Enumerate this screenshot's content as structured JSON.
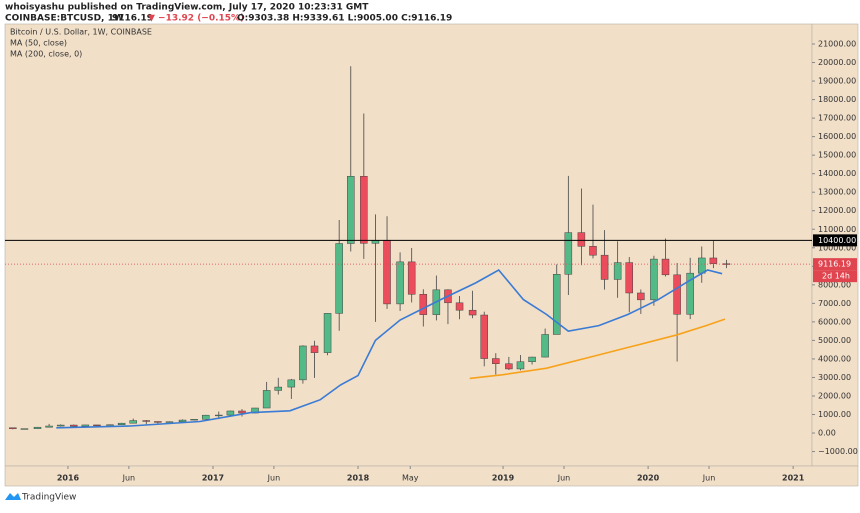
{
  "header": {
    "published": "whoisyashu published on TradingView.com, July 17, 2020 10:23:31 GMT",
    "symbol": "COINBASE:BTCUSD, 1W",
    "last": "9116.19",
    "change": "▼ −13.92 (−0.15%)",
    "ohlc": "O:9303.38 H:9339.61 L:9005.00 C:9116.19"
  },
  "chart_data": {
    "type": "candlestick",
    "title": "Bitcoin / U.S. Dollar, 1W, COINBASE",
    "up_color": "#53b987",
    "down_color": "#eb4d5c",
    "x": [
      2015.62,
      2015.7,
      2015.79,
      2015.87,
      2015.95,
      2016.04,
      2016.12,
      2016.2,
      2016.29,
      2016.37,
      2016.45,
      2016.54,
      2016.62,
      2016.7,
      2016.79,
      2016.87,
      2016.95,
      2017.04,
      2017.12,
      2017.2,
      2017.29,
      2017.37,
      2017.45,
      2017.54,
      2017.62,
      2017.7,
      2017.79,
      2017.87,
      2017.95,
      2018.04,
      2018.12,
      2018.2,
      2018.29,
      2018.37,
      2018.45,
      2018.54,
      2018.62,
      2018.7,
      2018.79,
      2018.87,
      2018.95,
      2019.04,
      2019.12,
      2019.2,
      2019.29,
      2019.37,
      2019.45,
      2019.54,
      2019.62,
      2019.7,
      2019.79,
      2019.87,
      2019.95,
      2020.04,
      2020.12,
      2020.2,
      2020.29,
      2020.37,
      2020.45,
      2020.54
    ],
    "open": [
      284,
      230,
      236,
      314,
      378,
      430,
      368,
      437,
      416,
      448,
      531,
      673,
      624,
      575,
      609,
      700,
      742,
      963,
      970,
      1190,
      1080,
      1350,
      2300,
      2480,
      2870,
      4700,
      4340,
      6460,
      10230,
      13860,
      10240,
      10400,
      6970,
      9240,
      7490,
      6390,
      7730,
      7030,
      6630,
      6370,
      4020,
      3740,
      3460,
      3850,
      4100,
      5320,
      8570,
      10820,
      10080,
      9600,
      8290,
      9200,
      7560,
      7190,
      9390,
      8540,
      6410,
      8630,
      9450,
      9140
    ],
    "high": [
      285,
      244,
      334,
      495,
      465,
      462,
      445,
      440,
      468,
      548,
      778,
      703,
      626,
      628,
      740,
      754,
      979,
      1160,
      1210,
      1290,
      1360,
      2760,
      2980,
      2920,
      4740,
      4980,
      6470,
      11500,
      19800,
      17250,
      11800,
      11700,
      9750,
      9990,
      7760,
      8500,
      7760,
      7400,
      7680,
      6550,
      4310,
      4110,
      4210,
      4120,
      5640,
      9100,
      13880,
      13200,
      12330,
      10950,
      10350,
      9500,
      7750,
      9570,
      10500,
      9180,
      9460,
      10070,
      10380,
      9350
    ],
    "low": [
      199,
      225,
      236,
      300,
      350,
      350,
      366,
      394,
      412,
      436,
      521,
      475,
      480,
      570,
      607,
      677,
      739,
      750,
      930,
      890,
      1060,
      1350,
      2080,
      1840,
      2670,
      2980,
      4200,
      5520,
      9800,
      9400,
      6000,
      6700,
      6590,
      7050,
      5750,
      6080,
      5880,
      6140,
      6200,
      3600,
      3160,
      3400,
      3380,
      3700,
      4080,
      5330,
      7450,
      9060,
      9430,
      7740,
      7300,
      6520,
      6430,
      6870,
      8450,
      3860,
      6150,
      8110,
      8900,
      8900
    ],
    "close": [
      230,
      236,
      314,
      378,
      430,
      368,
      437,
      416,
      448,
      531,
      673,
      624,
      575,
      609,
      700,
      742,
      963,
      970,
      1190,
      1080,
      1350,
      2300,
      2480,
      2870,
      4700,
      4340,
      6460,
      10230,
      13860,
      10240,
      10400,
      6970,
      9240,
      7490,
      6390,
      7730,
      7030,
      6630,
      6370,
      4020,
      3740,
      3460,
      3850,
      4100,
      5320,
      8570,
      10820,
      10080,
      9600,
      8290,
      9200,
      7560,
      7190,
      9390,
      8540,
      6410,
      8630,
      9450,
      9140,
      9116.19
    ],
    "series": [
      {
        "name": "MA (50, close)",
        "color": "#3a7bd5",
        "x": [
          2015.92,
          2016.43,
          2016.91,
          2017.26,
          2017.53,
          2017.74,
          2017.88,
          2018.0,
          2018.12,
          2018.29,
          2018.57,
          2018.81,
          2018.97,
          2019.14,
          2019.3,
          2019.45,
          2019.66,
          2019.86,
          2020.07,
          2020.28,
          2020.41,
          2020.51
        ],
        "values": [
          280,
          380,
          620,
          1100,
          1200,
          1800,
          2600,
          3100,
          5000,
          6100,
          7200,
          8100,
          8800,
          7200,
          6400,
          5500,
          5800,
          6400,
          7200,
          8200,
          8800,
          8600
        ]
      },
      {
        "name": "MA (200, close, 0)",
        "color": "#f7a21b",
        "x": [
          2018.77,
          2019.0,
          2019.3,
          2019.6,
          2019.9,
          2020.2,
          2020.4,
          2020.53
        ],
        "values": [
          2950,
          3150,
          3500,
          4100,
          4700,
          5300,
          5800,
          6150
        ]
      }
    ],
    "hline": {
      "value": 10400,
      "label": "10400.00"
    },
    "last_price": {
      "value": 9116.19,
      "label": "9116.19",
      "countdown": "2d 14h"
    },
    "xlim": [
      2015.566,
      2021.13
    ],
    "ylim": [
      -1780,
      22080
    ],
    "xticks": [
      {
        "value": 2016,
        "label": "2016"
      },
      {
        "value": 2016.42,
        "label": "Jun"
      },
      {
        "value": 2017,
        "label": "2017"
      },
      {
        "value": 2017.42,
        "label": "Jun"
      },
      {
        "value": 2018,
        "label": "2018"
      },
      {
        "value": 2018.36,
        "label": "May"
      },
      {
        "value": 2019,
        "label": "2019"
      },
      {
        "value": 2019.42,
        "label": "Jun"
      },
      {
        "value": 2020,
        "label": "2020"
      },
      {
        "value": 2020.42,
        "label": "Jun"
      },
      {
        "value": 2021,
        "label": "2021"
      }
    ],
    "yticks": [
      {
        "value": -1000,
        "label": "−1000.00"
      },
      {
        "value": 0,
        "label": "0.00"
      },
      {
        "value": 1000,
        "label": "1000.00"
      },
      {
        "value": 2000,
        "label": "2000.00"
      },
      {
        "value": 3000,
        "label": "3000.00"
      },
      {
        "value": 4000,
        "label": "4000.00"
      },
      {
        "value": 5000,
        "label": "5000.00"
      },
      {
        "value": 6000,
        "label": "6000.00"
      },
      {
        "value": 7000,
        "label": "7000.00"
      },
      {
        "value": 8000,
        "label": "8000.00"
      },
      {
        "value": 9000,
        "label": "9000.00"
      },
      {
        "value": 10000,
        "label": "10000.00"
      },
      {
        "value": 11000,
        "label": "11000.00"
      },
      {
        "value": 12000,
        "label": "12000.00"
      },
      {
        "value": 13000,
        "label": "13000.00"
      },
      {
        "value": 14000,
        "label": "14000.00"
      },
      {
        "value": 15000,
        "label": "15000.00"
      },
      {
        "value": 16000,
        "label": "16000.00"
      },
      {
        "value": 17000,
        "label": "17000.00"
      },
      {
        "value": 18000,
        "label": "18000.00"
      },
      {
        "value": 19000,
        "label": "19000.00"
      },
      {
        "value": 20000,
        "label": "20000.00"
      },
      {
        "value": 21000,
        "label": "21000.00"
      }
    ]
  },
  "footer": {
    "brand": "TradingView"
  }
}
